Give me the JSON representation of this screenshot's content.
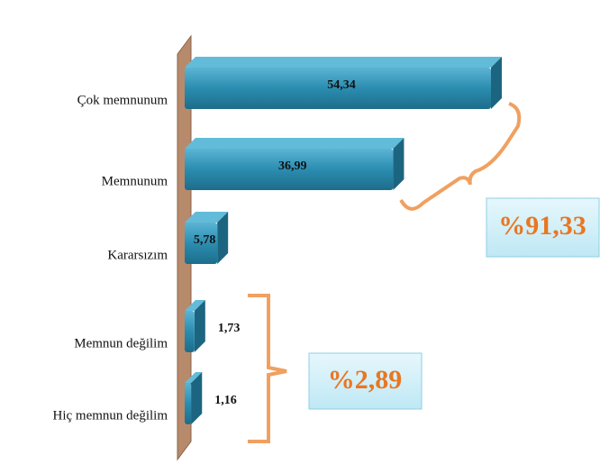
{
  "chart_data": {
    "type": "bar",
    "orientation": "horizontal",
    "categories": [
      "Çok memnunum",
      "Memnunum",
      "Kararsızım",
      "Memnun değilim",
      "Hiç memnun değilim"
    ],
    "values": [
      54.34,
      36.99,
      5.78,
      1.73,
      1.16
    ],
    "value_labels": [
      "54,34",
      "36,99",
      "5,78",
      "1,73",
      "1,16"
    ],
    "color": "#2b8db0",
    "annotations": [
      "%91,33",
      "%2,89"
    ]
  }
}
